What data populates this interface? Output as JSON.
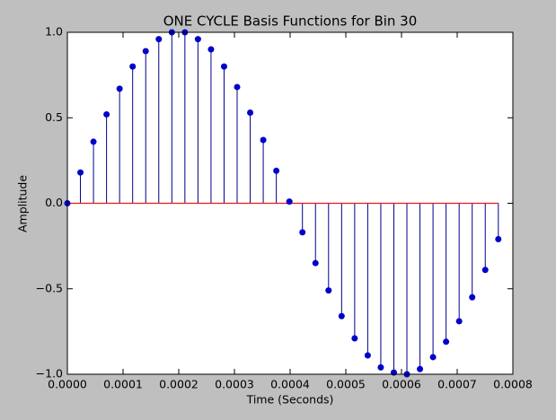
{
  "chart_data": {
    "type": "stem",
    "title": "ONE CYCLE Basis Functions for Bin 30",
    "x_label": "Time (Seconds)",
    "y_label": "Amplitude",
    "x": [
      0,
      2.345e-05,
      4.69e-05,
      7.035e-05,
      9.38e-05,
      0.00011725,
      0.0001407,
      0.00016415,
      0.0001876,
      0.00021105,
      0.0002345,
      0.00025795,
      0.0002814,
      0.00030485,
      0.0003283,
      0.00035175,
      0.0003752,
      0.00039865,
      0.0004221,
      0.00044555,
      0.000469,
      0.00049245,
      0.0005159,
      0.00053935,
      0.0005628,
      0.00058625,
      0.0006097,
      0.00063315,
      0.0006566,
      0.00068005,
      0.0007035,
      0.00072695,
      0.0007504,
      0.00077385
    ],
    "values": [
      0,
      0.18,
      0.36,
      0.52,
      0.67,
      0.8,
      0.89,
      0.96,
      1.0,
      1.0,
      0.96,
      0.9,
      0.8,
      0.68,
      0.53,
      0.37,
      0.19,
      0.01,
      -0.17,
      -0.35,
      -0.51,
      -0.66,
      -0.79,
      -0.89,
      -0.96,
      -0.99,
      -1.0,
      -0.97,
      -0.9,
      -0.81,
      -0.69,
      -0.55,
      -0.39,
      -0.21
    ],
    "color": "#0000c8",
    "stem_color": "#00008b",
    "baseline_color": "#e41a1c",
    "xlim": [
      0,
      0.0008
    ],
    "ylim": [
      -1,
      1
    ],
    "xticks": [
      {
        "value": 0,
        "label": "0.0000"
      },
      {
        "value": 0.0001,
        "label": "0.0001"
      },
      {
        "value": 0.0002,
        "label": "0.0002"
      },
      {
        "value": 0.0003,
        "label": "0.0003"
      },
      {
        "value": 0.0004,
        "label": "0.0004"
      },
      {
        "value": 0.0005,
        "label": "0.0005"
      },
      {
        "value": 0.0006,
        "label": "0.0006"
      },
      {
        "value": 0.0007,
        "label": "0.0007"
      },
      {
        "value": 0.0008,
        "label": "0.0008"
      }
    ],
    "yticks": [
      {
        "value": -1,
        "label": "−1.0"
      },
      {
        "value": -0.5,
        "label": "−0.5"
      },
      {
        "value": 0,
        "label": "0.0"
      },
      {
        "value": 0.5,
        "label": "0.5"
      },
      {
        "value": 1,
        "label": "1.0"
      }
    ]
  }
}
